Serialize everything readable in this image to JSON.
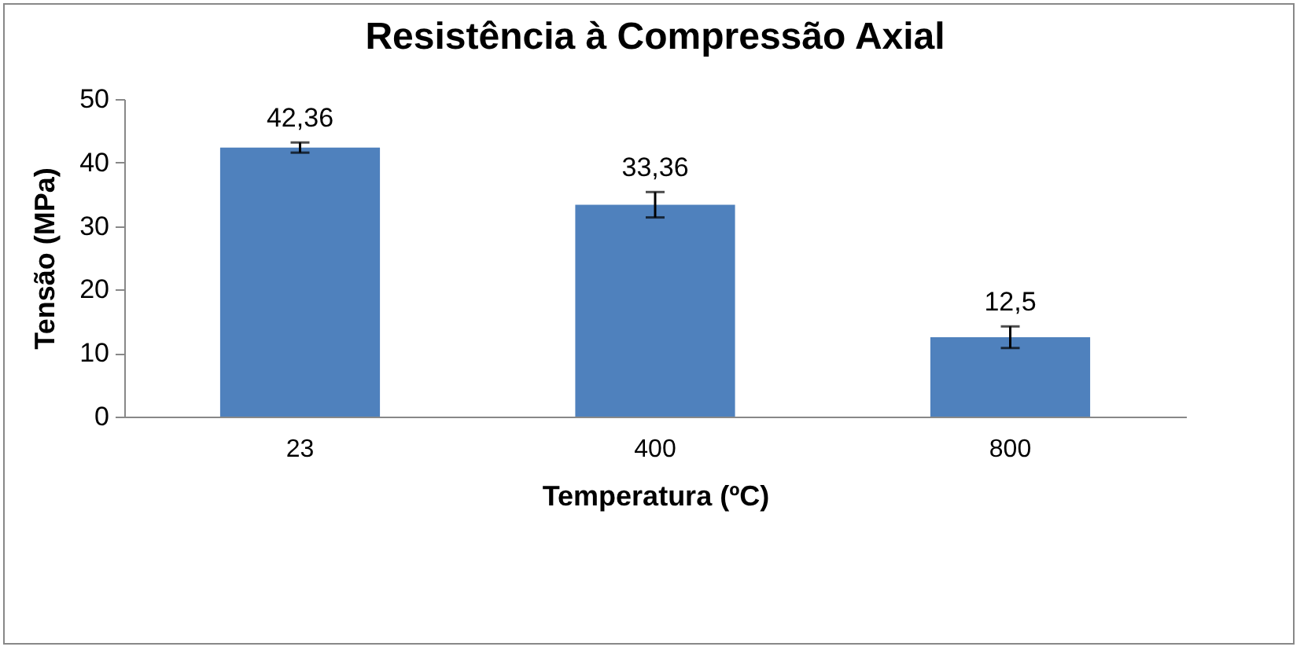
{
  "chart_data": {
    "type": "bar",
    "title": "Resistência à Compressão Axial",
    "xlabel": "Temperatura (ºC)",
    "ylabel": "Tensão (MPa)",
    "categories": [
      "23",
      "400",
      "800"
    ],
    "values": [
      42.36,
      33.36,
      12.5
    ],
    "value_labels": [
      "42,36",
      "33,36",
      "12,5"
    ],
    "errors": [
      0.8,
      2,
      1.7
    ],
    "color": "#4f81bd",
    "ylim": [
      0,
      50
    ],
    "yticks": [
      0,
      10,
      20,
      30,
      40,
      50
    ],
    "grid": false
  }
}
